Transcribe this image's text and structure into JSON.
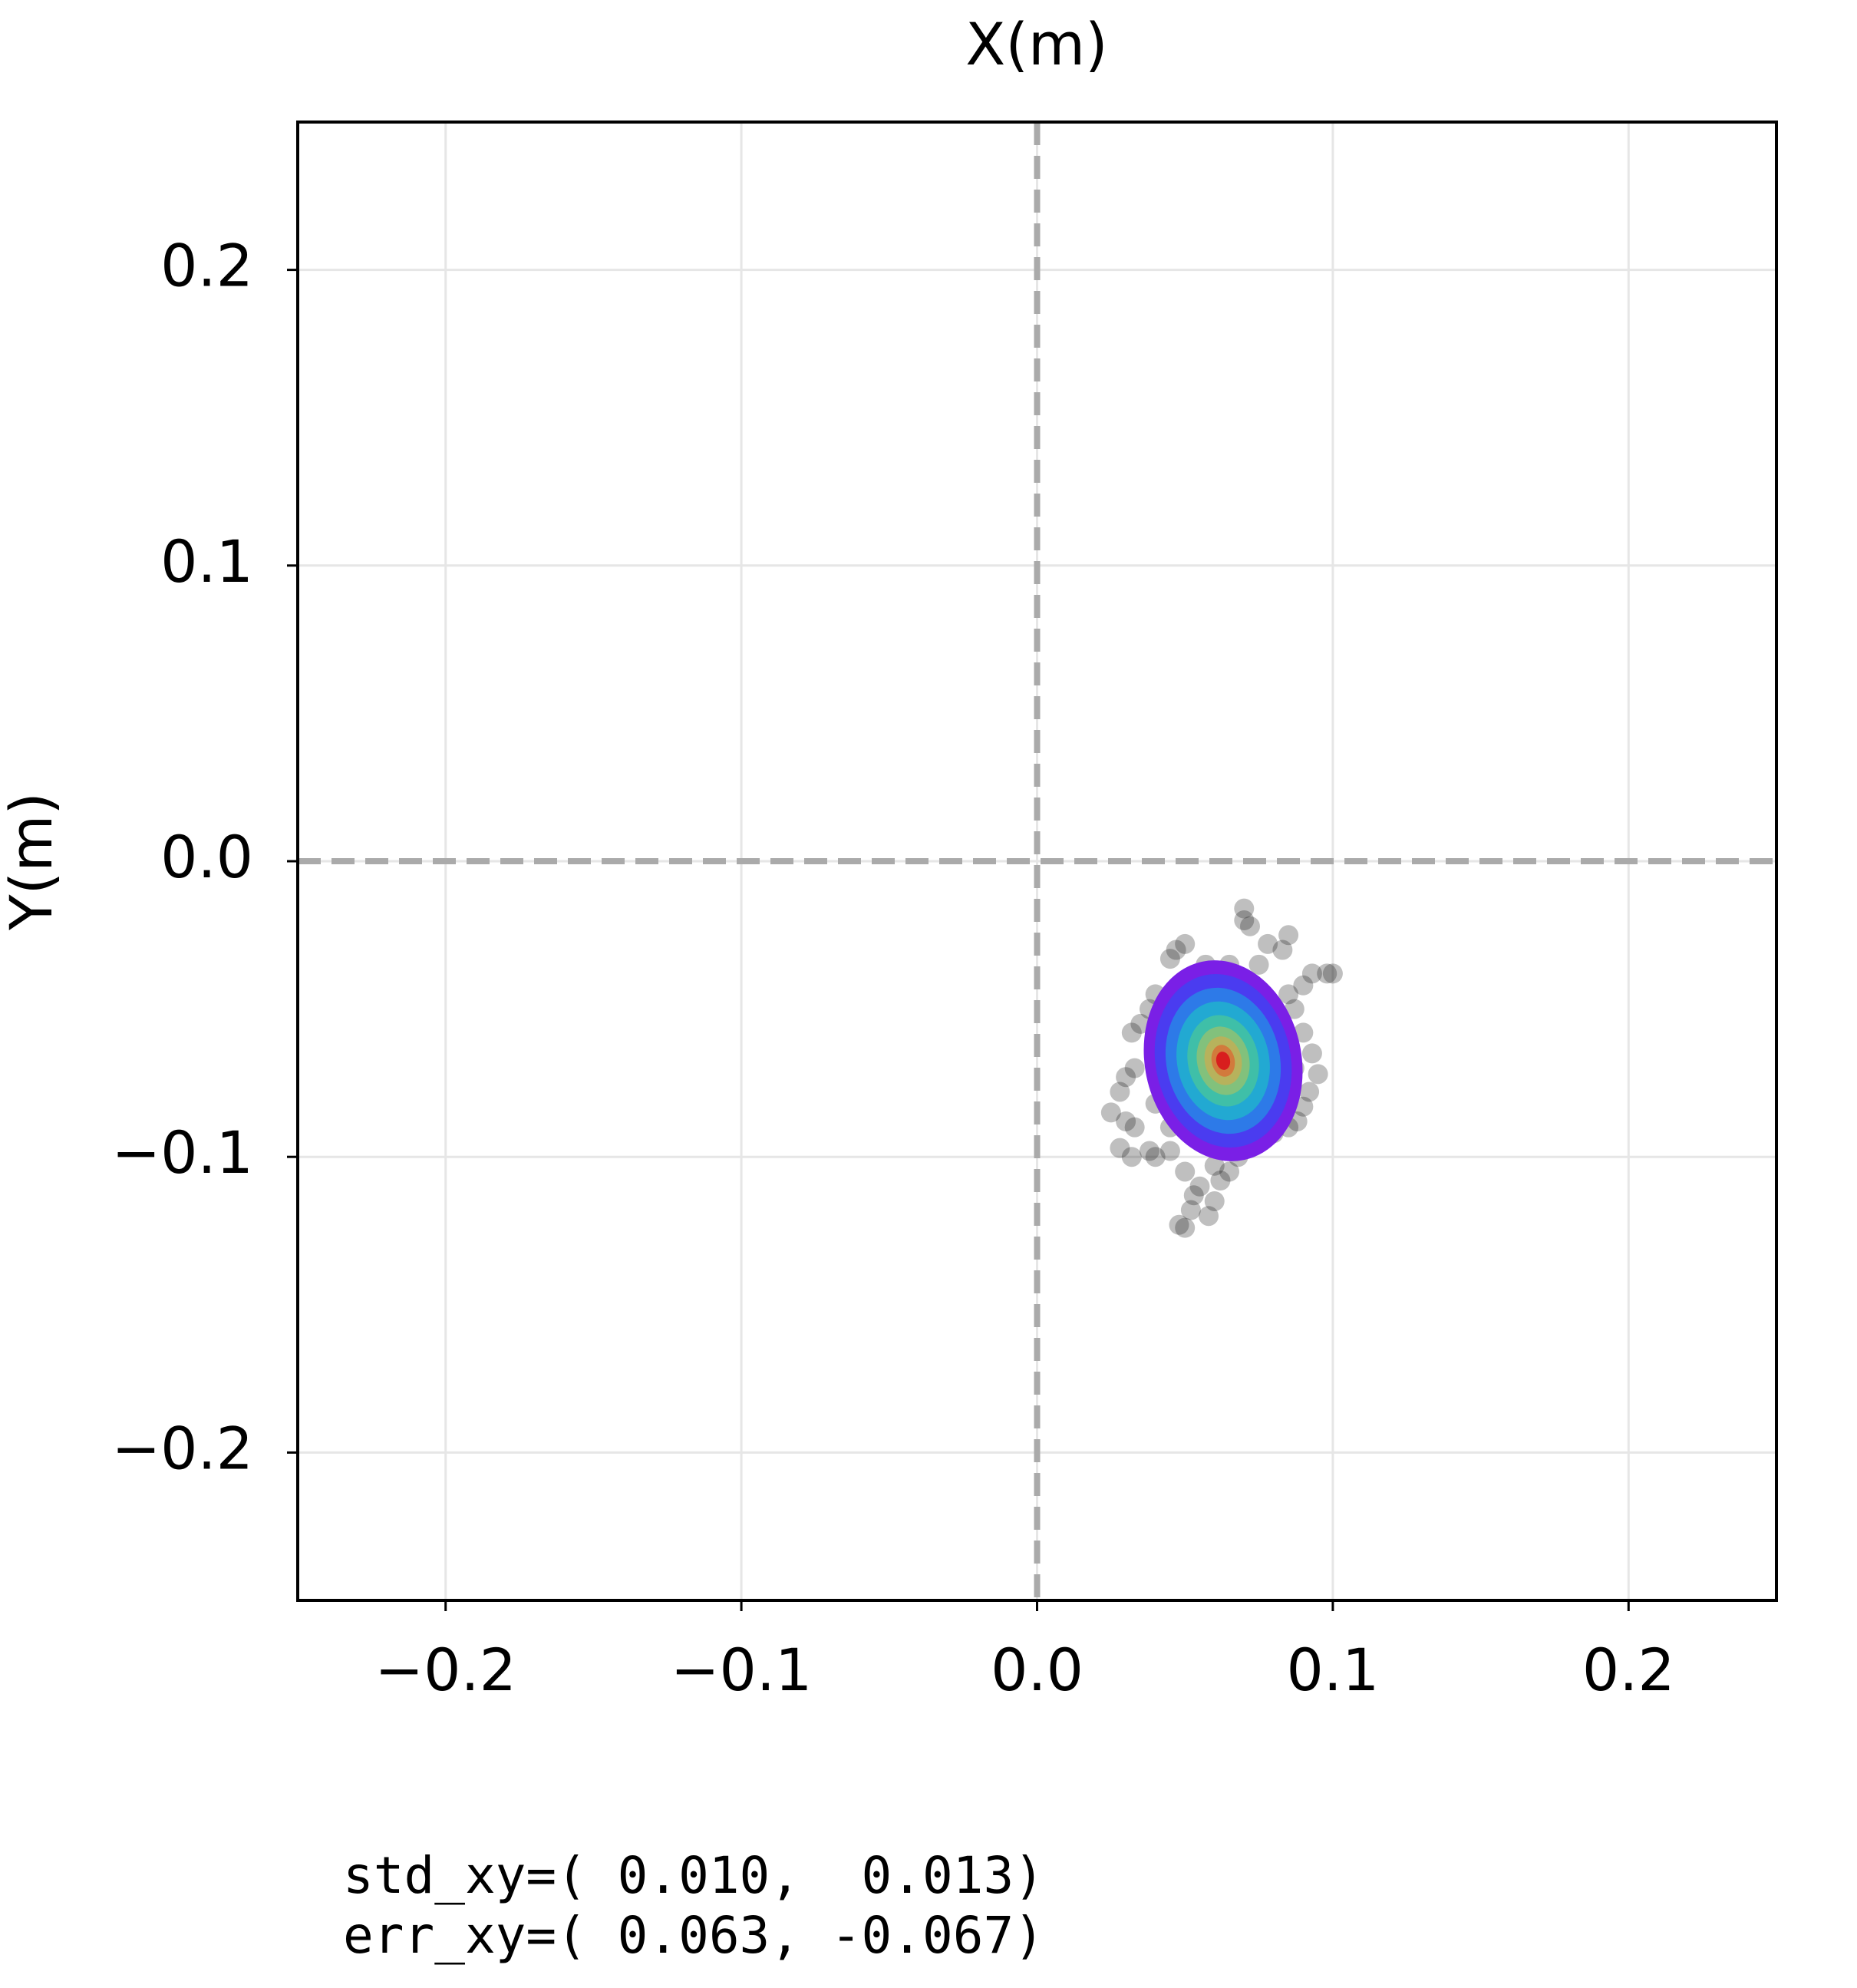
{
  "chart_data": {
    "type": "scatter",
    "title": "X(m)",
    "y_label": "Y(m)",
    "xlim": [
      -0.25,
      0.25
    ],
    "ylim": [
      -0.25,
      0.25
    ],
    "xticks": [
      {
        "value": -0.2,
        "label": "−0.2"
      },
      {
        "value": -0.1,
        "label": "−0.1"
      },
      {
        "value": 0,
        "label": "0.0"
      },
      0.1,
      0.2
    ],
    "yticks": [
      {
        "value": -0.2,
        "label": "−0.2"
      },
      {
        "value": -0.1,
        "label": "−0.1"
      },
      {
        "value": 0,
        "label": "0.0"
      },
      0.1,
      0.2
    ],
    "grid": true,
    "zero_lines": true,
    "color": "#000000",
    "x": [
      0.07,
      0.07,
      0.072,
      0.05,
      0.047,
      0.045,
      0.078,
      0.083,
      0.085,
      0.093,
      0.098,
      0.1,
      0.09,
      0.04,
      0.038,
      0.035,
      0.032,
      0.033,
      0.03,
      0.028,
      0.025,
      0.03,
      0.033,
      0.028,
      0.032,
      0.038,
      0.04,
      0.045,
      0.05,
      0.055,
      0.053,
      0.052,
      0.048,
      0.05,
      0.058,
      0.06,
      0.062,
      0.06,
      0.065,
      0.068,
      0.072,
      0.08,
      0.085,
      0.088,
      0.09,
      0.092,
      0.095,
      0.093,
      0.09,
      0.087,
      0.085,
      0.075,
      0.065,
      0.057,
      0.042,
      0.04,
      0.045,
      0.06,
      0.078,
      0.087
    ],
    "values": [
      -0.016,
      -0.02,
      -0.022,
      -0.028,
      -0.03,
      -0.033,
      -0.028,
      -0.03,
      -0.025,
      -0.038,
      -0.038,
      -0.038,
      -0.042,
      -0.045,
      -0.05,
      -0.055,
      -0.058,
      -0.07,
      -0.073,
      -0.078,
      -0.085,
      -0.088,
      -0.09,
      -0.097,
      -0.1,
      -0.098,
      -0.1,
      -0.098,
      -0.105,
      -0.11,
      -0.113,
      -0.118,
      -0.123,
      -0.124,
      -0.12,
      -0.115,
      -0.108,
      -0.103,
      -0.105,
      -0.1,
      -0.097,
      -0.092,
      -0.09,
      -0.088,
      -0.083,
      -0.078,
      -0.072,
      -0.065,
      -0.058,
      -0.05,
      -0.045,
      -0.035,
      -0.035,
      -0.035,
      -0.063,
      -0.082,
      -0.09,
      -0.097,
      -0.087,
      -0.07
    ],
    "annotations": [
      "std_xy=( 0.010,  0.013)",
      "err_xy=( 0.063, -0.067)"
    ]
  }
}
